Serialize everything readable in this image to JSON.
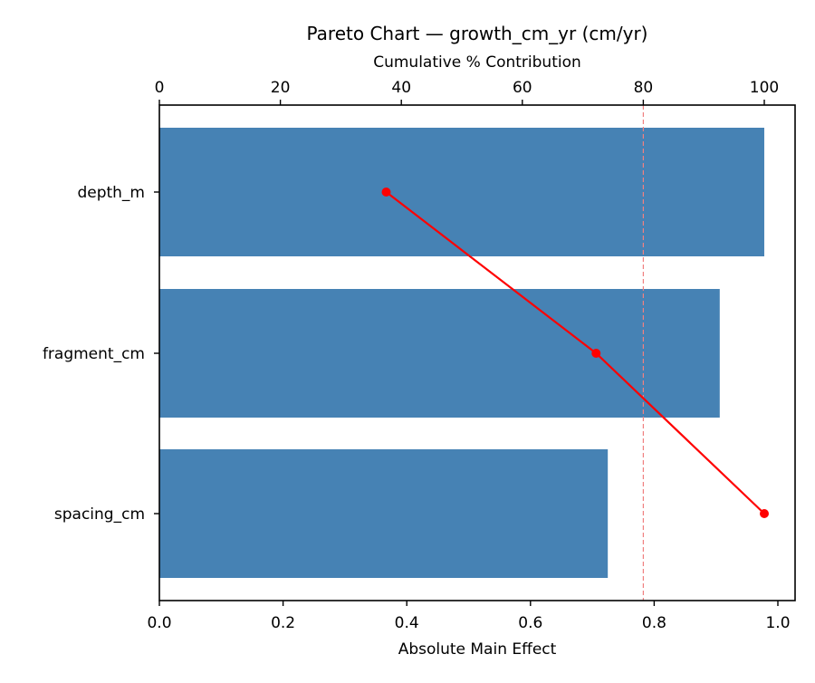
{
  "chart_data": {
    "type": "bar",
    "orientation": "horizontal",
    "title": "Pareto Chart — growth_cm_yr (cm/yr)",
    "xlabel": "Absolute Main Effect",
    "x2label": "Cumulative % Contribution",
    "ylabel": "",
    "categories": [
      "depth_m",
      "fragment_cm",
      "spacing_cm"
    ],
    "series": [
      {
        "name": "Absolute Main Effect",
        "type": "bar",
        "axis": "bottom",
        "color": "#4682b4",
        "values": [
          0.978,
          0.906,
          0.725
        ]
      },
      {
        "name": "Cumulative % Contribution",
        "type": "line",
        "axis": "top",
        "color": "#ff0000",
        "marker": "circle",
        "values": [
          37.5,
          72.2,
          100.0
        ]
      }
    ],
    "reference_lines": [
      {
        "axis": "top",
        "value": 80,
        "style": "dashed",
        "color": "#f08080"
      }
    ],
    "xlim": [
      0.0,
      1.028
    ],
    "x2lim": [
      0,
      105
    ],
    "xticks": [
      "0.0",
      "0.2",
      "0.4",
      "0.6",
      "0.8",
      "1.0"
    ],
    "x2ticks": [
      "0",
      "20",
      "40",
      "60",
      "80",
      "100"
    ],
    "grid": false,
    "legend": null
  }
}
